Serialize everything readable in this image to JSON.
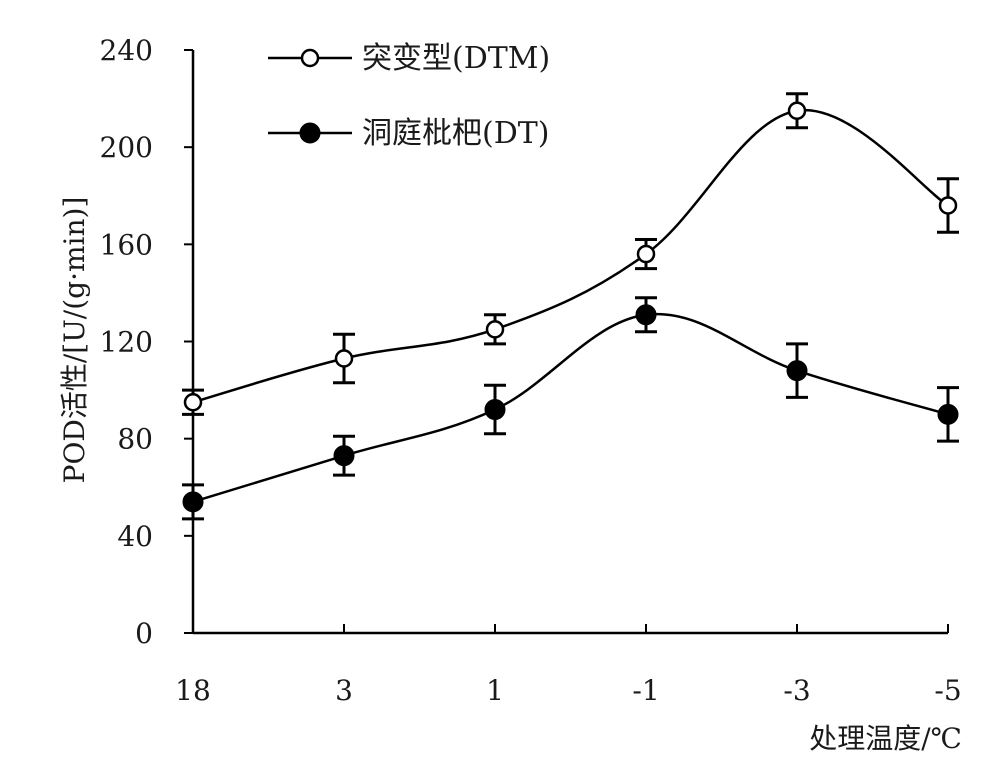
{
  "chart_data": {
    "type": "line",
    "categories": [
      "18",
      "3",
      "1",
      "-1",
      "-3",
      "-5"
    ],
    "ylim": [
      0,
      240
    ],
    "yticks": [
      0,
      40,
      80,
      120,
      160,
      200,
      240
    ],
    "ylabel": "POD活性/[U/(g·min)]",
    "xlabel": "处理温度/℃",
    "legend_position": "top-left",
    "grid": false,
    "series": [
      {
        "name": "突变型(DTM)",
        "marker": "open-circle",
        "values": [
          95,
          113,
          125,
          156,
          215,
          176
        ],
        "errors": [
          5,
          10,
          6,
          6,
          7,
          11
        ]
      },
      {
        "name": "洞庭枇杷(DT)",
        "marker": "filled-circle",
        "values": [
          54,
          73,
          92,
          131,
          108,
          90
        ],
        "errors": [
          7,
          8,
          10,
          7,
          11,
          11
        ]
      }
    ],
    "colors": {
      "line": "#000000",
      "marker_fill_open": "#ffffff",
      "marker_fill_filled": "#000000"
    }
  }
}
